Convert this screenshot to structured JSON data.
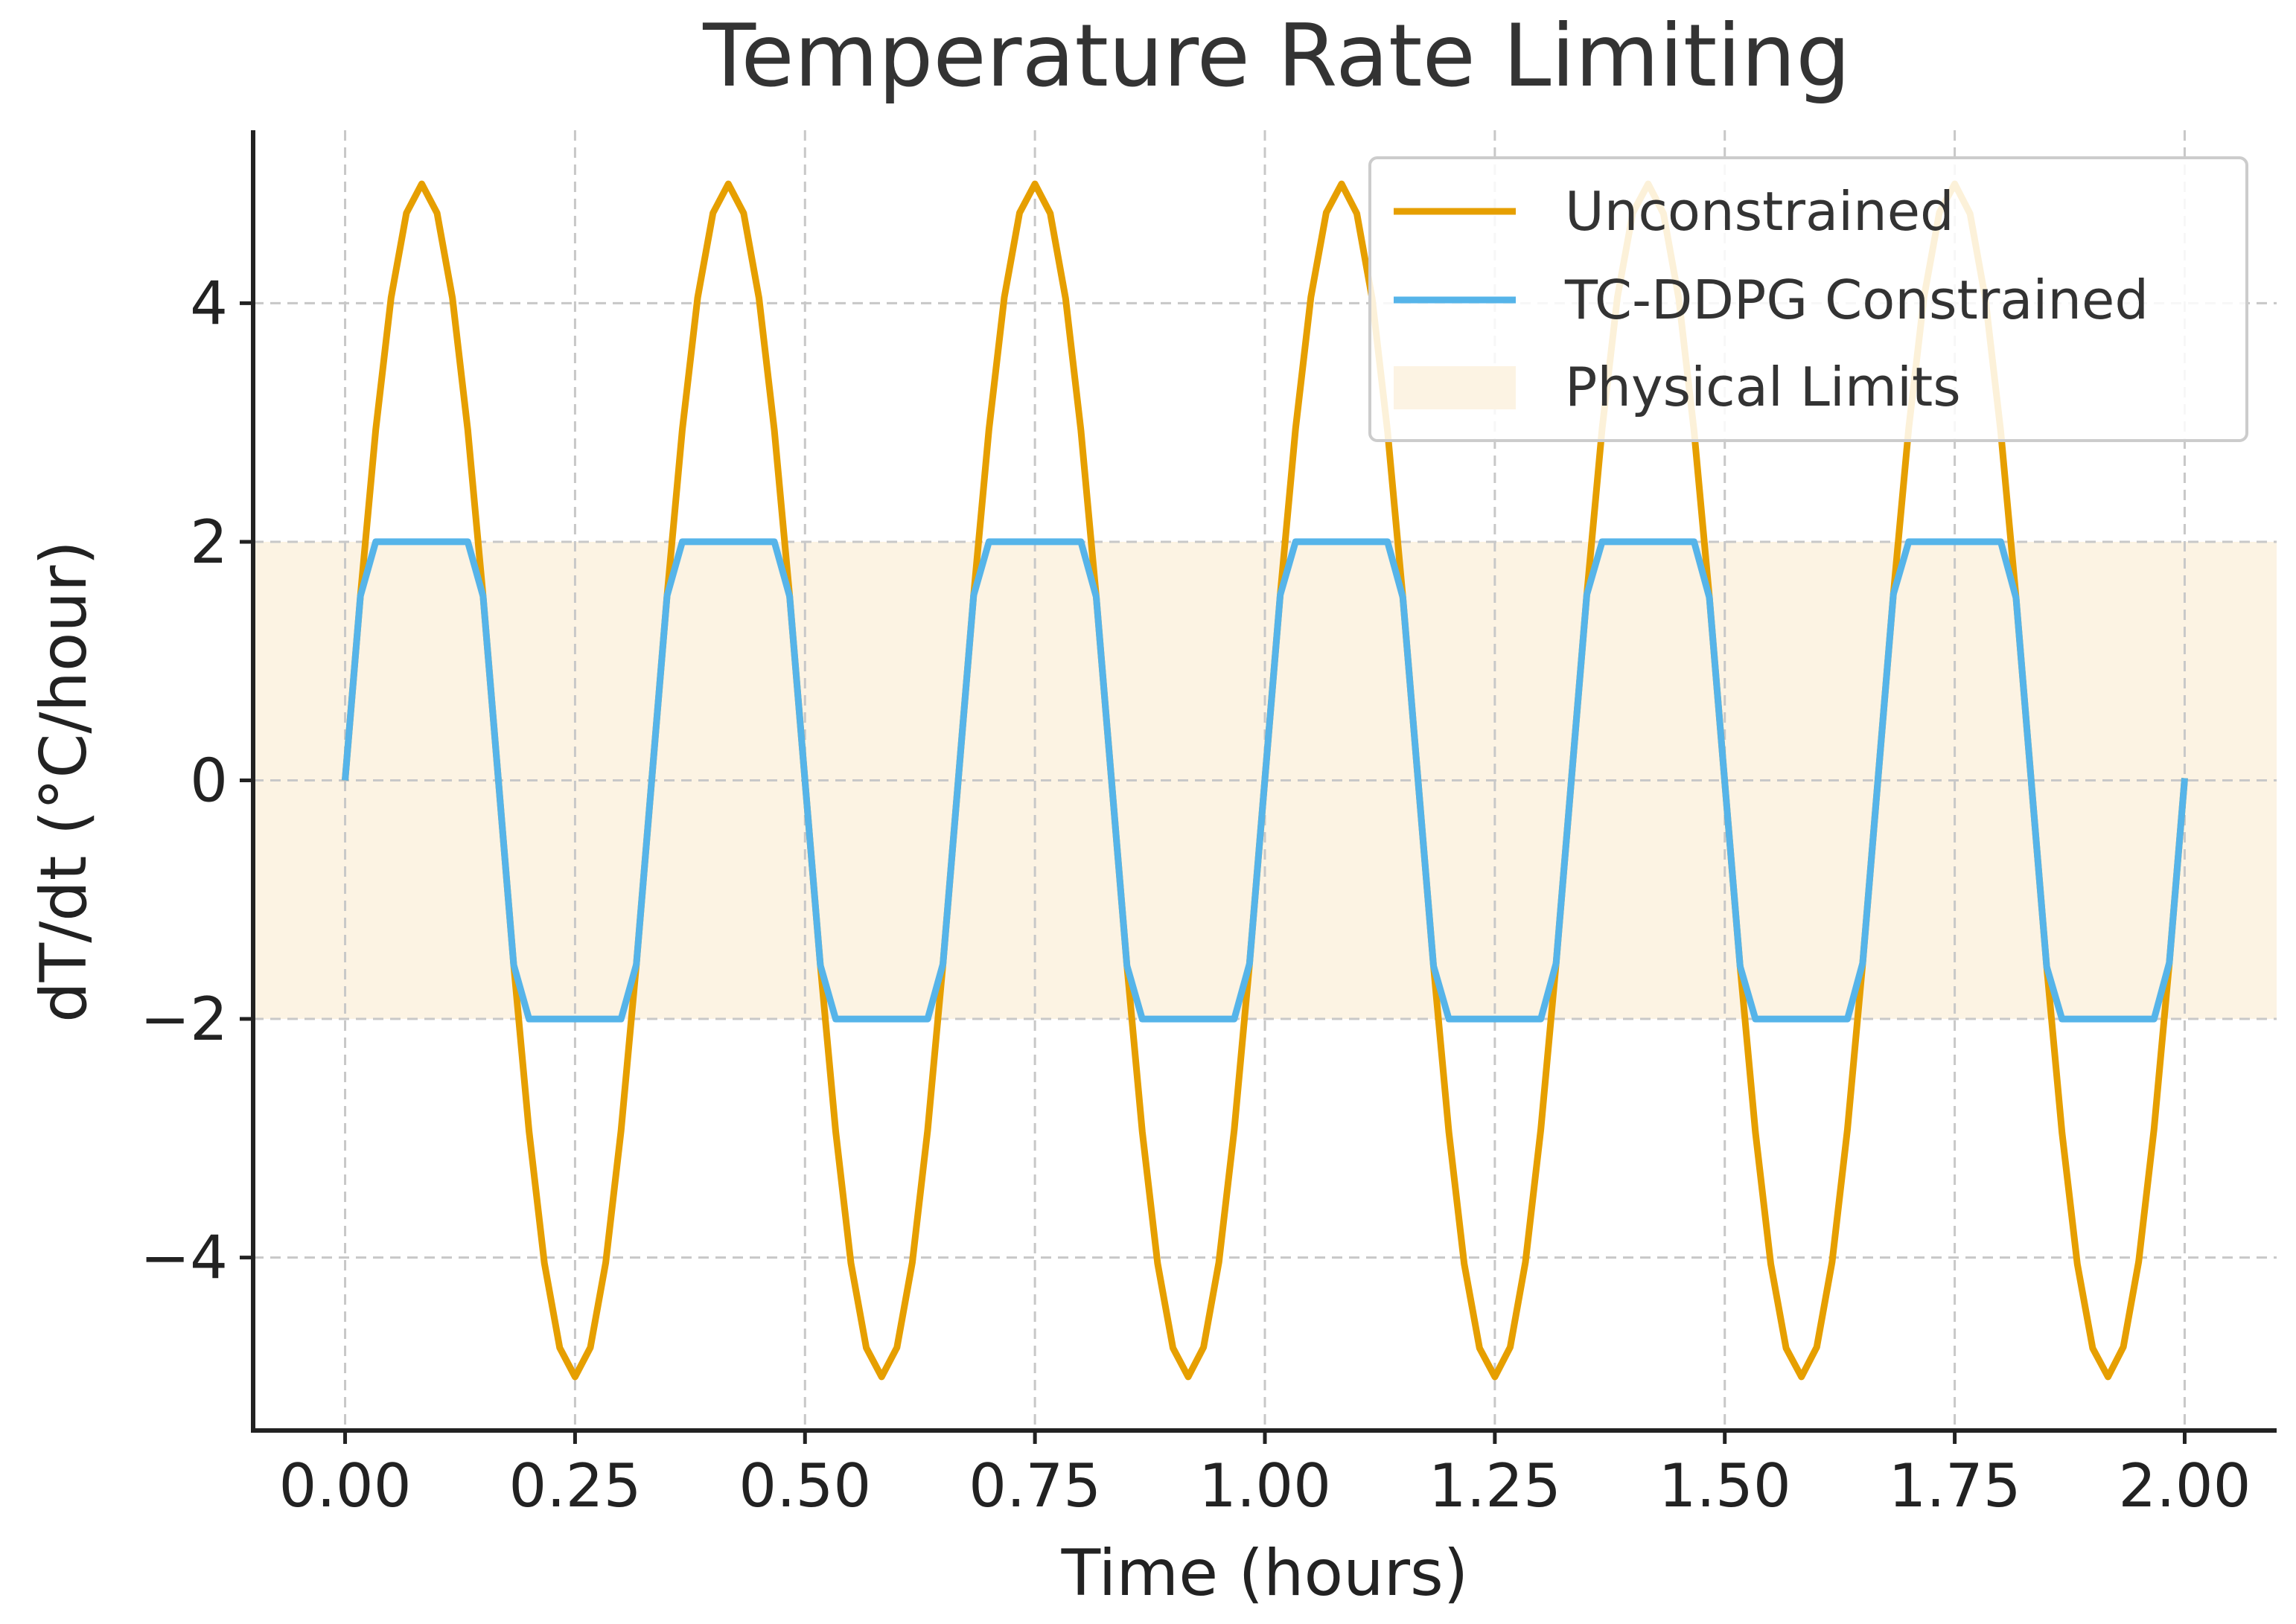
{
  "chart_data": {
    "type": "line",
    "title": "Temperature Rate Limiting",
    "xlabel": "Time (hours)",
    "ylabel": "dT/dt (°C/hour)",
    "xlim": [
      -0.1,
      2.1
    ],
    "ylim": [
      -5.45,
      5.45
    ],
    "xticks": [
      0,
      0.25,
      0.5,
      0.75,
      1.0,
      1.25,
      1.5,
      1.75,
      2.0
    ],
    "xtick_labels": [
      "0.00",
      "0.25",
      "0.50",
      "0.75",
      "1.00",
      "1.25",
      "1.50",
      "1.75",
      "2.00"
    ],
    "yticks": [
      -4,
      -2,
      0,
      2,
      4
    ],
    "ytick_labels": [
      "−4",
      "−2",
      "0",
      "2",
      "4"
    ],
    "grid": true,
    "legend_position": "top-right",
    "series": [
      {
        "name": "Unconstrained",
        "color": "#E69F00",
        "description": "5·sin(2π·t/0.3333), t from 0 to 2 h",
        "amplitude": 5,
        "period_hours": 0.3333,
        "x_start": 0,
        "x_end": 2,
        "samples": 121
      },
      {
        "name": "TC-DDPG Constrained",
        "color": "#56B4E9",
        "description": "Unconstrained signal clipped to ±2",
        "clip_min": -2,
        "clip_max": 2
      }
    ],
    "band": {
      "name": "Physical Limits",
      "ymin": -2,
      "ymax": 2,
      "color": "#FCF3E3"
    }
  }
}
